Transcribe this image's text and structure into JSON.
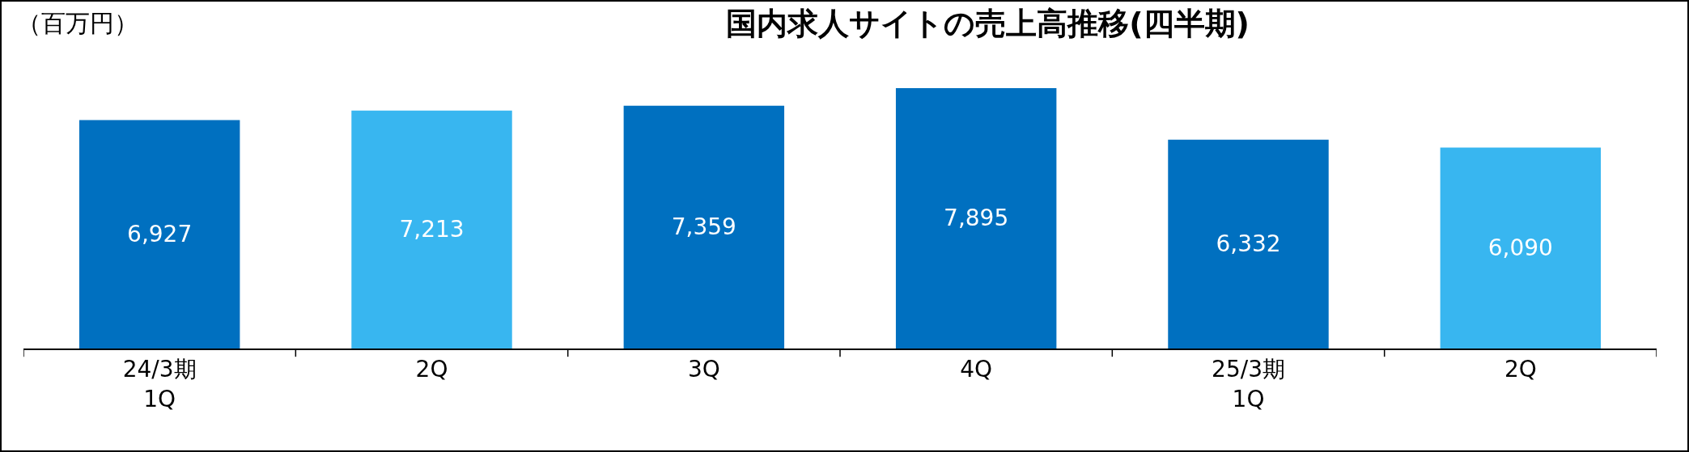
{
  "chart_data": {
    "type": "bar",
    "title": "国内求人サイトの売上高推移(四半期)",
    "ylabel": "（百万円）",
    "categories": [
      "24/3期\n1Q",
      "2Q",
      "3Q",
      "4Q",
      "25/3期\n1Q",
      "2Q"
    ],
    "values": [
      6927,
      7213,
      7359,
      7895,
      6332,
      6090
    ],
    "colors": [
      "#0070c0",
      "#38b6f0",
      "#0070c0",
      "#0070c0",
      "#0070c0",
      "#38b6f0"
    ],
    "value_labels": [
      "6,927",
      "7,213",
      "7,359",
      "7,895",
      "6,332",
      "6,090"
    ],
    "grid": false,
    "legend": false
  }
}
